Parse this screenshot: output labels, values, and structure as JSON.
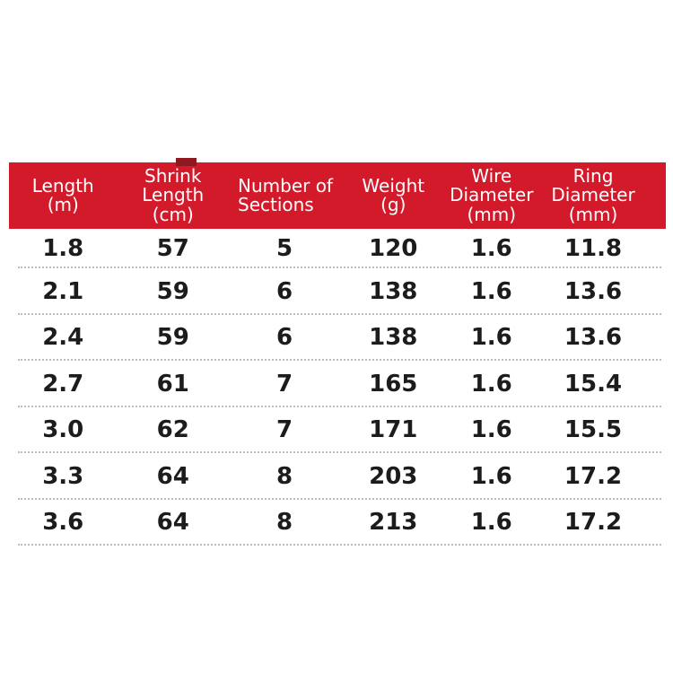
{
  "page": {
    "background": "#ffffff"
  },
  "table": {
    "header_bg": "#d31a2b",
    "header_text_color": "#ffffff",
    "remnant_color": "#8f181e",
    "body_text_color": "#1c1c1c",
    "divider_color": "#bdbdbd",
    "columns": [
      {
        "id": "length",
        "label": "Length\n(m)"
      },
      {
        "id": "shrink_length",
        "label": "Shrink\nLength\n(cm)"
      },
      {
        "id": "sections",
        "label": "Number of\nSections"
      },
      {
        "id": "weight",
        "label": "Weight\n(g)"
      },
      {
        "id": "wire_diameter",
        "label": "Wire\nDiameter\n(mm)"
      },
      {
        "id": "ring_diameter",
        "label": "Ring\nDiameter\n(mm)"
      }
    ],
    "rows": [
      [
        "1.8",
        "57",
        "5",
        "120",
        "1.6",
        "11.8"
      ],
      [
        "2.1",
        "59",
        "6",
        "138",
        "1.6",
        "13.6"
      ],
      [
        "2.4",
        "59",
        "6",
        "138",
        "1.6",
        "13.6"
      ],
      [
        "2.7",
        "61",
        "7",
        "165",
        "1.6",
        "15.4"
      ],
      [
        "3.0",
        "62",
        "7",
        "171",
        "1.6",
        "15.5"
      ],
      [
        "3.3",
        "64",
        "8",
        "203",
        "1.6",
        "17.2"
      ],
      [
        "3.6",
        "64",
        "8",
        "213",
        "1.6",
        "17.2"
      ]
    ]
  },
  "chart_data": {
    "type": "table",
    "title": "",
    "columns": [
      "Length (m)",
      "Shrink Length (cm)",
      "Number of Sections",
      "Weight (g)",
      "Wire Diameter (mm)",
      "Ring Diameter (mm)"
    ],
    "rows": [
      [
        1.8,
        57,
        5,
        120,
        1.6,
        11.8
      ],
      [
        2.1,
        59,
        6,
        138,
        1.6,
        13.6
      ],
      [
        2.4,
        59,
        6,
        138,
        1.6,
        13.6
      ],
      [
        2.7,
        61,
        7,
        165,
        1.6,
        15.4
      ],
      [
        3.0,
        62,
        7,
        171,
        1.6,
        15.5
      ],
      [
        3.3,
        64,
        8,
        203,
        1.6,
        17.2
      ],
      [
        3.6,
        64,
        8,
        213,
        1.6,
        17.2
      ]
    ],
    "legend_position": "none",
    "grid": "dotted row separators only"
  }
}
